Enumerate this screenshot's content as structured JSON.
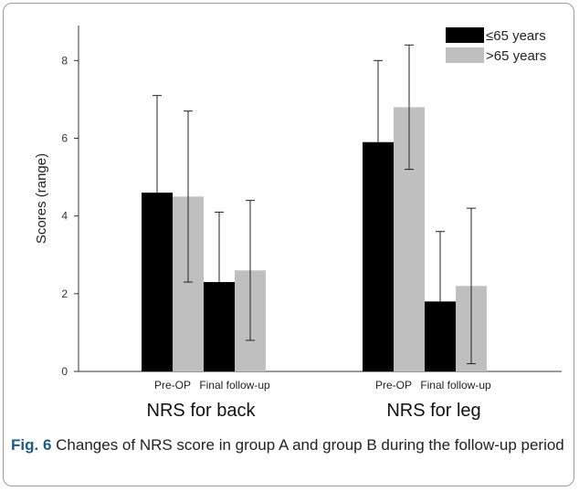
{
  "caption": {
    "label": "Fig. 6",
    "text": "Changes of NRS score in group A and group B during the follow-up period"
  },
  "chart_data": {
    "type": "bar",
    "title": "",
    "ylabel": "Scores (range)",
    "ylim": [
      0,
      8.9
    ],
    "yticks": [
      0,
      2,
      4,
      6,
      8
    ],
    "grid": false,
    "legend_position": "top-right",
    "groups": [
      {
        "label": "NRS for back",
        "categories": [
          "Pre-OP",
          "Final follow-up"
        ]
      },
      {
        "label": "NRS for leg",
        "categories": [
          "Pre-OP",
          "Final follow-up"
        ]
      }
    ],
    "categories": [
      "Pre-OP",
      "Final follow-up",
      "Pre-OP",
      "Final follow-up"
    ],
    "series": [
      {
        "name": "≤65 years",
        "color": "#000000",
        "values": [
          4.6,
          2.3,
          5.9,
          1.8
        ],
        "error_upper": [
          7.1,
          4.1,
          8.0,
          3.6
        ],
        "error_lower": [
          null,
          null,
          null,
          null
        ]
      },
      {
        "name": ">65 years",
        "color": "#bfbfbf",
        "values": [
          4.5,
          2.6,
          6.8,
          2.2
        ],
        "error_upper": [
          6.7,
          4.4,
          8.4,
          4.2
        ],
        "error_lower": [
          2.3,
          0.8,
          5.2,
          0.2
        ]
      }
    ]
  }
}
